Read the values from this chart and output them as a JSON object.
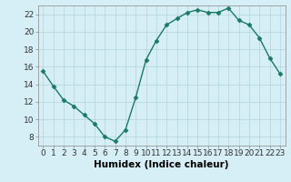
{
  "x": [
    0,
    1,
    2,
    3,
    4,
    5,
    6,
    7,
    8,
    9,
    10,
    11,
    12,
    13,
    14,
    15,
    16,
    17,
    18,
    19,
    20,
    21,
    22,
    23
  ],
  "y": [
    15.5,
    13.8,
    12.2,
    11.5,
    10.5,
    9.5,
    8.0,
    7.5,
    8.8,
    12.5,
    16.8,
    19.0,
    20.8,
    21.5,
    22.2,
    22.5,
    22.2,
    22.2,
    22.7,
    21.3,
    20.8,
    19.3,
    17.0,
    15.2
  ],
  "line_color": "#1a7a65",
  "marker": "D",
  "marker_size": 2.5,
  "bg_color": "#d6eef5",
  "grid_color": "#b8d8e0",
  "xlabel": "Humidex (Indice chaleur)",
  "xlim": [
    -0.5,
    23.5
  ],
  "ylim": [
    7,
    23
  ],
  "yticks": [
    8,
    10,
    12,
    14,
    16,
    18,
    20,
    22
  ],
  "xticks": [
    0,
    1,
    2,
    3,
    4,
    5,
    6,
    7,
    8,
    9,
    10,
    11,
    12,
    13,
    14,
    15,
    16,
    17,
    18,
    19,
    20,
    21,
    22,
    23
  ],
  "xtick_labels": [
    "0",
    "1",
    "2",
    "3",
    "4",
    "5",
    "6",
    "7",
    "8",
    "9",
    "10",
    "11",
    "12",
    "13",
    "14",
    "15",
    "16",
    "17",
    "18",
    "19",
    "20",
    "21",
    "22",
    "23"
  ],
  "font_size_xlabel": 7.5,
  "font_size_ticks": 6.5
}
